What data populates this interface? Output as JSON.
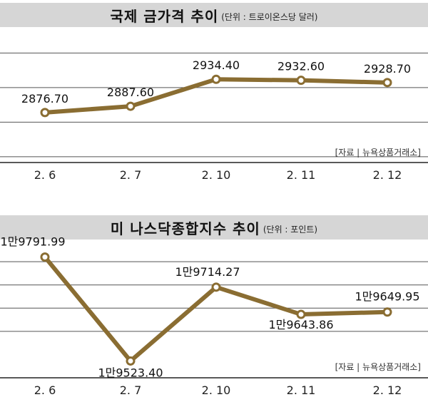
{
  "chart_data": [
    {
      "type": "line",
      "title": "국제 금가격 추이",
      "unit": "(단위 : 트로이온스당 달러)",
      "source": "[자료 | 뉴욕상품거래소]",
      "categories": [
        "2. 6",
        "2. 7",
        "2. 10",
        "2. 11",
        "2. 12"
      ],
      "values": [
        2876.7,
        2887.6,
        2934.4,
        2932.6,
        2928.7
      ],
      "value_labels": [
        "2876.70",
        "2887.60",
        "2934.40",
        "2932.60",
        "2928.70"
      ],
      "ylim": [
        2790,
        3020
      ],
      "gridlines": [
        2800,
        2860,
        2920,
        2980
      ],
      "color": "#8a6d32"
    },
    {
      "type": "line",
      "title": "미 나스닥종합지수 추이",
      "unit": "(단위 : 포인트)",
      "source": "[자료 | 뉴욕상품거래소]",
      "categories": [
        "2. 6",
        "2. 7",
        "2. 10",
        "2. 11",
        "2. 12"
      ],
      "values": [
        19791.99,
        19523.4,
        19714.27,
        19643.86,
        19649.95
      ],
      "value_labels": [
        "1만9791.99",
        "1만9523.40",
        "1만9714.27",
        "1만9643.86",
        "1만9649.95"
      ],
      "ylim": [
        19480,
        19830
      ],
      "gridlines": [
        19780,
        19720,
        19660,
        19600
      ],
      "color": "#8a6d32"
    }
  ]
}
